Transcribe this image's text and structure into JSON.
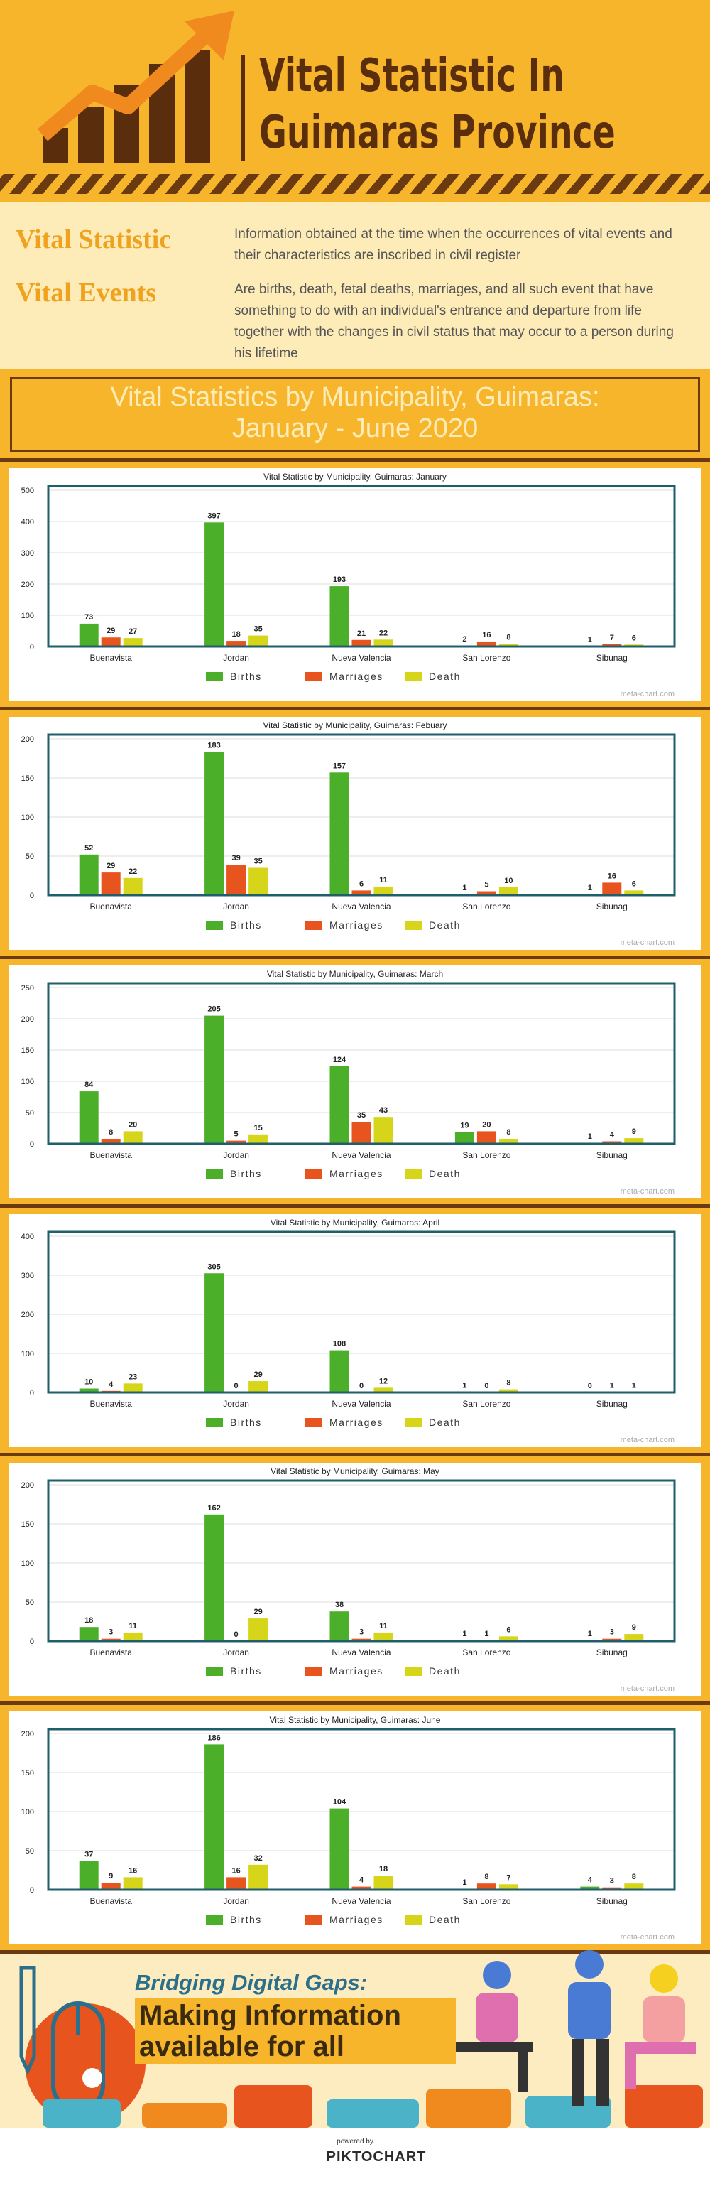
{
  "header": {
    "title_line1": "Vital Statistic In",
    "title_line2": "Guimaras Province"
  },
  "definitions": [
    {
      "term": "Vital Statistic",
      "text": "Information obtained at the time when the occurrences of vital events and their characteristics are inscribed in civil register"
    },
    {
      "term": "Vital Events",
      "text": "Are births, death, fetal deaths, marriages, and all such event that have something to do with an individual's entrance and departure from life together with the changes in civil status that may occur to a person during his lifetime"
    }
  ],
  "banner": {
    "line1": "Vital Statistics by Municipality, Guimaras:",
    "line2": "January - June 2020"
  },
  "chart_data": [
    {
      "type": "bar",
      "title": "Vital Statistic by Municipality, Guimaras: January",
      "source": "meta-chart.com",
      "grid": true,
      "legend": "bottom",
      "categories": [
        "Buenavista",
        "Jordan",
        "Nueva Valencia",
        "San Lorenzo",
        "Sibunag"
      ],
      "series": [
        {
          "name": "Births",
          "color": "#4caf2a",
          "values": [
            73,
            397,
            193,
            2,
            1
          ]
        },
        {
          "name": "Marriages",
          "color": "#e8541e",
          "values": [
            29,
            18,
            21,
            16,
            7
          ]
        },
        {
          "name": "Death",
          "color": "#d6d51a",
          "values": [
            27,
            35,
            22,
            8,
            6
          ]
        }
      ],
      "ylim": [
        0,
        500
      ],
      "yticks": [
        0,
        100,
        200,
        300,
        400,
        500
      ]
    },
    {
      "type": "bar",
      "title": "Vital Statistic by Municipality, Guimaras: Febuary",
      "source": "meta-chart.com",
      "grid": true,
      "legend": "bottom",
      "categories": [
        "Buenavista",
        "Jordan",
        "Nueva Valencia",
        "San Lorenzo",
        "Sibunag"
      ],
      "series": [
        {
          "name": "Births",
          "color": "#4caf2a",
          "values": [
            52,
            183,
            157,
            1,
            1
          ]
        },
        {
          "name": "Marriages",
          "color": "#e8541e",
          "values": [
            29,
            39,
            6,
            5,
            16
          ]
        },
        {
          "name": "Death",
          "color": "#d6d51a",
          "values": [
            22,
            35,
            11,
            10,
            6
          ]
        }
      ],
      "ylim": [
        0,
        200
      ],
      "yticks": [
        0,
        50,
        100,
        150,
        200
      ]
    },
    {
      "type": "bar",
      "title": "Vital Statistic by Municipality, Guimaras: March",
      "source": "meta-chart.com",
      "grid": true,
      "legend": "bottom",
      "categories": [
        "Buenavista",
        "Jordan",
        "Nueva Valencia",
        "San Lorenzo",
        "Sibunag"
      ],
      "series": [
        {
          "name": "Births",
          "color": "#4caf2a",
          "values": [
            84,
            205,
            124,
            19,
            1
          ]
        },
        {
          "name": "Marriages",
          "color": "#e8541e",
          "values": [
            8,
            5,
            35,
            20,
            4
          ]
        },
        {
          "name": "Death",
          "color": "#d6d51a",
          "values": [
            20,
            15,
            43,
            8,
            9
          ]
        }
      ],
      "ylim": [
        0,
        250
      ],
      "yticks": [
        0,
        50,
        100,
        150,
        200,
        250
      ]
    },
    {
      "type": "bar",
      "title": "Vital Statistic by Municipality, Guimaras: April",
      "source": "meta-chart.com",
      "grid": true,
      "legend": "bottom",
      "categories": [
        "Buenavista",
        "Jordan",
        "Nueva Valencia",
        "San Lorenzo",
        "Sibunag"
      ],
      "series": [
        {
          "name": "Births",
          "color": "#4caf2a",
          "values": [
            10,
            305,
            108,
            1,
            0
          ]
        },
        {
          "name": "Marriages",
          "color": "#e8541e",
          "values": [
            4,
            0,
            0,
            0,
            1
          ]
        },
        {
          "name": "Death",
          "color": "#d6d51a",
          "values": [
            23,
            29,
            12,
            8,
            1
          ]
        }
      ],
      "ylim": [
        0,
        400
      ],
      "yticks": [
        0,
        100,
        200,
        300,
        400
      ]
    },
    {
      "type": "bar",
      "title": "Vital Statistic by Municipality, Guimaras: May",
      "source": "meta-chart.com",
      "grid": true,
      "legend": "bottom",
      "categories": [
        "Buenavista",
        "Jordan",
        "Nueva Valencia",
        "San Lorenzo",
        "Sibunag"
      ],
      "series": [
        {
          "name": "Births",
          "color": "#4caf2a",
          "values": [
            18,
            162,
            38,
            1,
            1
          ]
        },
        {
          "name": "Marriages",
          "color": "#e8541e",
          "values": [
            3,
            0,
            3,
            1,
            3
          ]
        },
        {
          "name": "Death",
          "color": "#d6d51a",
          "values": [
            11,
            29,
            11,
            6,
            9
          ]
        }
      ],
      "ylim": [
        0,
        200
      ],
      "yticks": [
        0,
        50,
        100,
        150,
        200
      ]
    },
    {
      "type": "bar",
      "title": "Vital Statistic by Municipality, Guimaras: June",
      "source": "meta-chart.com",
      "grid": true,
      "legend": "bottom",
      "categories": [
        "Buenavista",
        "Jordan",
        "Nueva Valencia",
        "San Lorenzo",
        "Sibunag"
      ],
      "series": [
        {
          "name": "Births",
          "color": "#4caf2a",
          "values": [
            37,
            186,
            104,
            1,
            4
          ]
        },
        {
          "name": "Marriages",
          "color": "#e8541e",
          "values": [
            9,
            16,
            4,
            8,
            3
          ]
        },
        {
          "name": "Death",
          "color": "#d6d51a",
          "values": [
            16,
            32,
            18,
            7,
            8
          ]
        }
      ],
      "ylim": [
        0,
        200
      ],
      "yticks": [
        0,
        50,
        100,
        150,
        200
      ]
    }
  ],
  "footer": {
    "tagline": "Bridging Digital Gaps:",
    "headline_line1": "Making Information",
    "headline_line2": "available for all",
    "powered_by": "powered by",
    "brand": "PIKTOCHART"
  }
}
